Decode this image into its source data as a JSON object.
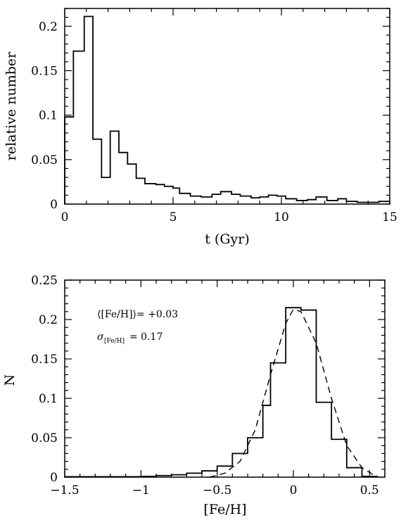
{
  "chart_data": [
    {
      "type": "histogram",
      "xlabel": "t (Gyr)",
      "ylabel": "relative number",
      "xlim": [
        0,
        15
      ],
      "ylim": [
        0,
        0.22
      ],
      "xticks": [
        0,
        5,
        10,
        15
      ],
      "xtick_labels": [
        "0",
        "5",
        "10",
        "15"
      ],
      "yticks": [
        0,
        0.05,
        0.1,
        0.15,
        0.2
      ],
      "ytick_labels": [
        "0",
        "0.05",
        "0.1",
        "0.15",
        "0.2"
      ],
      "bin_edges": [
        0,
        0.4,
        0.9,
        1.3,
        1.7,
        2.1,
        2.5,
        2.9,
        3.3,
        3.7,
        4.2,
        4.6,
        5.0,
        5.3,
        5.8,
        6.3,
        6.8,
        7.2,
        7.7,
        8.1,
        8.6,
        9.0,
        9.4,
        9.8,
        10.2,
        10.7,
        11.2,
        11.6,
        12.1,
        12.6,
        13.0,
        13.5,
        14.0,
        14.5,
        15.0
      ],
      "values": [
        0.098,
        0.172,
        0.211,
        0.073,
        0.03,
        0.082,
        0.058,
        0.045,
        0.029,
        0.023,
        0.022,
        0.02,
        0.018,
        0.012,
        0.009,
        0.008,
        0.011,
        0.014,
        0.011,
        0.009,
        0.007,
        0.008,
        0.01,
        0.009,
        0.006,
        0.004,
        0.005,
        0.008,
        0.004,
        0.006,
        0.003,
        0.002,
        0.002,
        0.003
      ],
      "grid": false
    },
    {
      "type": "histogram",
      "xlabel": "[Fe/H]",
      "ylabel": "N",
      "xlim": [
        -1.5,
        0.6
      ],
      "ylim": [
        0,
        0.25
      ],
      "xticks": [
        -1.5,
        -1,
        -0.5,
        0,
        0.5
      ],
      "xtick_labels": [
        "−1.5",
        "−1",
        "−0.5",
        "0",
        "0.5"
      ],
      "yticks": [
        0,
        0.05,
        0.1,
        0.15,
        0.2,
        0.25
      ],
      "ytick_labels": [
        "0",
        "0.05",
        "0.1",
        "0.15",
        "0.2",
        "0.25"
      ],
      "bin_edges": [
        -1.5,
        -1.0,
        -0.9,
        -0.8,
        -0.7,
        -0.6,
        -0.5,
        -0.4,
        -0.3,
        -0.2,
        -0.15,
        -0.05,
        0.05,
        0.15,
        0.25,
        0.35,
        0.45,
        0.55
      ],
      "values": [
        0.0005,
        0.001,
        0.002,
        0.003,
        0.005,
        0.008,
        0.014,
        0.03,
        0.05,
        0.091,
        0.145,
        0.215,
        0.212,
        0.095,
        0.048,
        0.012,
        0.001
      ],
      "fit_curve": {
        "style": "dashed",
        "x": [
          -0.55,
          -0.45,
          -0.35,
          -0.25,
          -0.15,
          -0.05,
          0.0,
          0.05,
          0.15,
          0.25,
          0.35,
          0.45,
          0.55
        ],
        "y": [
          0.0,
          0.005,
          0.02,
          0.06,
          0.13,
          0.195,
          0.213,
          0.21,
          0.17,
          0.1,
          0.04,
          0.012,
          0.0
        ]
      },
      "annotations": [
        {
          "text": "⟨[Fe/H]⟩= +0.03"
        },
        {
          "text_main": "σ",
          "text_sub": "[Fe/H]",
          "text_value": "= 0.17"
        }
      ],
      "grid": false
    }
  ]
}
